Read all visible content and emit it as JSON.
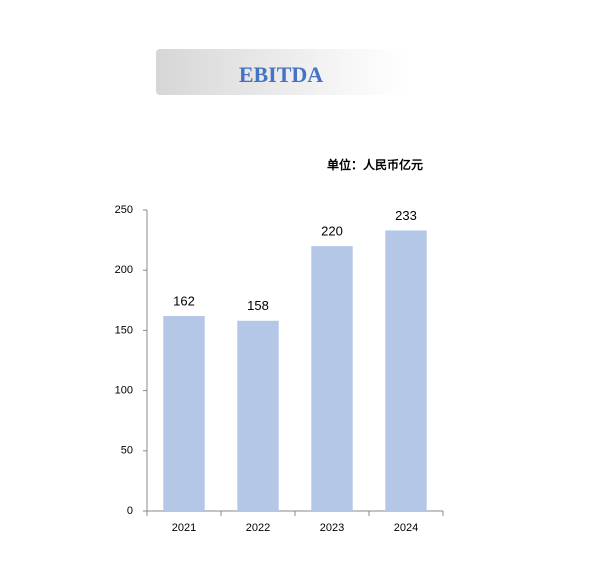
{
  "chart_data": {
    "type": "bar",
    "title": "EBITDA",
    "subtitle": "单位：人民币亿元",
    "categories": [
      "2021",
      "2022",
      "2023",
      "2024"
    ],
    "values": [
      162,
      158,
      220,
      233
    ],
    "color": "#b4c7e7",
    "ylim": [
      0,
      250
    ],
    "yticks": [
      0,
      50,
      100,
      150,
      200,
      250
    ],
    "grid": false
  }
}
